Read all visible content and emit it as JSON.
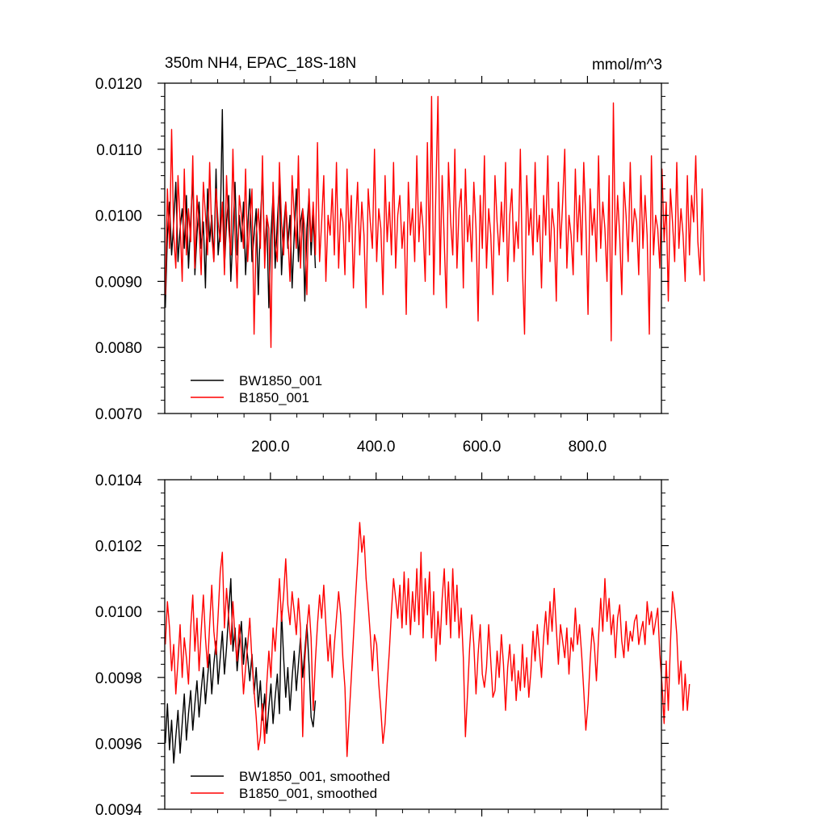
{
  "chart_data": [
    {
      "type": "line",
      "title": "350m NH4, EPAC_18S-18N",
      "units": "mmol/m^3",
      "xlim": [
        0,
        940
      ],
      "ylim": [
        0.007,
        0.012
      ],
      "xticks": [
        200,
        400,
        600,
        800
      ],
      "xtick_labels": [
        "200.0",
        "400.0",
        "600.0",
        "800.0"
      ],
      "yticks": [
        0.007,
        0.008,
        0.009,
        0.01,
        0.011,
        0.012
      ],
      "ytick_labels": [
        "0.0070",
        "0.0080",
        "0.0090",
        "0.0100",
        "0.0110",
        "0.0120"
      ],
      "legend_position": "bottom-left",
      "series": [
        {
          "name": "BW1850_001",
          "color": "#000000",
          "x_start": 1,
          "x_step": 4,
          "values": [
            0.0086,
            0.0097,
            0.0102,
            0.0094,
            0.0099,
            0.0105,
            0.0093,
            0.0098,
            0.0101,
            0.0095,
            0.0103,
            0.0092,
            0.0099,
            0.0106,
            0.0091,
            0.0097,
            0.0102,
            0.0095,
            0.0099,
            0.0089,
            0.0104,
            0.0096,
            0.01,
            0.0093,
            0.0107,
            0.0094,
            0.0098,
            0.0116,
            0.0092,
            0.0099,
            0.0103,
            0.009,
            0.0097,
            0.0105,
            0.0094,
            0.01,
            0.0096,
            0.0102,
            0.0091,
            0.0098,
            0.0104,
            0.0093,
            0.0097,
            0.0101,
            0.0088,
            0.0099,
            0.0106,
            0.0094,
            0.01,
            0.0086,
            0.0097,
            0.0103,
            0.0092,
            0.0099,
            0.0105,
            0.0091,
            0.0098,
            0.0102,
            0.0095,
            0.01,
            0.0089,
            0.0097,
            0.0104,
            0.0093,
            0.0099,
            0.0101,
            0.0087,
            0.0098,
            0.0103,
            0.0094,
            0.01,
            0.0092
          ]
        },
        {
          "name": "B1850_001",
          "color": "#ff0000",
          "x_start": 1,
          "x_step": 4,
          "values": [
            0.0088,
            0.0104,
            0.0095,
            0.0113,
            0.0097,
            0.0092,
            0.0106,
            0.0099,
            0.009,
            0.0107,
            0.0094,
            0.0101,
            0.0096,
            0.0109,
            0.0092,
            0.0103,
            0.0098,
            0.0091,
            0.0105,
            0.01,
            0.0094,
            0.0108,
            0.0097,
            0.0093,
            0.0104,
            0.0099,
            0.0096,
            0.0102,
            0.0091,
            0.0106,
            0.0098,
            0.0094,
            0.011,
            0.0097,
            0.0089,
            0.0103,
            0.01,
            0.0095,
            0.0107,
            0.0093,
            0.0099,
            0.0104,
            0.0082,
            0.0097,
            0.0101,
            0.0095,
            0.0109,
            0.0092,
            0.01,
            0.0098,
            0.008,
            0.0105,
            0.0096,
            0.0093,
            0.0108,
            0.0099,
            0.0094,
            0.0102,
            0.0097,
            0.009,
            0.0106,
            0.01,
            0.0095,
            0.0109,
            0.0092,
            0.0101,
            0.0098,
            0.0088,
            0.0104,
            0.0096,
            0.0102,
            0.0094,
            0.0111,
            0.0093,
            0.0099,
            0.0106,
            0.009,
            0.01,
            0.0097,
            0.0104,
            0.0094,
            0.0108,
            0.0092,
            0.0101,
            0.0099,
            0.0091,
            0.0107,
            0.0096,
            0.0103,
            0.0089,
            0.0098,
            0.0105,
            0.0094,
            0.0102,
            0.0097,
            0.0086,
            0.0104,
            0.0099,
            0.0095,
            0.011,
            0.0093,
            0.0101,
            0.0098,
            0.0088,
            0.0106,
            0.0096,
            0.0102,
            0.0094,
            0.0108,
            0.0092,
            0.01,
            0.0103,
            0.0095,
            0.0099,
            0.0085,
            0.0105,
            0.0097,
            0.0101,
            0.0093,
            0.0109,
            0.0096,
            0.0102,
            0.0098,
            0.009,
            0.0111,
            0.0094,
            0.0118,
            0.0088,
            0.0103,
            0.0118,
            0.0091,
            0.0106,
            0.0096,
            0.0086,
            0.0108,
            0.0099,
            0.0094,
            0.011,
            0.0092,
            0.0101,
            0.0104,
            0.0089,
            0.0107,
            0.0096,
            0.01,
            0.0093,
            0.0105,
            0.0098,
            0.0084,
            0.0103,
            0.0095,
            0.0109,
            0.0092,
            0.0101,
            0.0097,
            0.0088,
            0.0106,
            0.0099,
            0.0094,
            0.0102,
            0.0096,
            0.0108,
            0.009,
            0.01,
            0.0104,
            0.0093,
            0.0099,
            0.0095,
            0.011,
            0.0092,
            0.0082,
            0.0106,
            0.0097,
            0.0101,
            0.0094,
            0.0108,
            0.0096,
            0.01,
            0.0089,
            0.0103,
            0.0097,
            0.0109,
            0.0093,
            0.0101,
            0.0098,
            0.0087,
            0.0105,
            0.0095,
            0.0102,
            0.011,
            0.0092,
            0.01,
            0.0097,
            0.0091,
            0.0107,
            0.0096,
            0.0103,
            0.0094,
            0.0108,
            0.0099,
            0.0085,
            0.0104,
            0.0097,
            0.0101,
            0.0093,
            0.0109,
            0.0095,
            0.0102,
            0.0098,
            0.009,
            0.0106,
            0.0081,
            0.0117,
            0.0094,
            0.0103,
            0.0097,
            0.0088,
            0.0105,
            0.01,
            0.0093,
            0.0108,
            0.0096,
            0.0101,
            0.0099,
            0.0091,
            0.0106,
            0.0095,
            0.0103,
            0.0097,
            0.0082,
            0.0109,
            0.0094,
            0.01,
            0.0098,
            0.0092,
            0.0107,
            0.0096,
            0.0102,
            0.0087,
            0.0104,
            0.0099,
            0.0093,
            0.0108,
            0.0095,
            0.0101,
            0.0097,
            0.009,
            0.0106,
            0.0094,
            0.0103,
            0.0099,
            0.0109,
            0.0096,
            0.0091,
            0.0104,
            0.009
          ]
        }
      ]
    },
    {
      "type": "line",
      "xlim": [
        0,
        940
      ],
      "ylim": [
        0.0094,
        0.0104
      ],
      "yticks": [
        0.0094,
        0.0096,
        0.0098,
        0.01,
        0.0102,
        0.0104
      ],
      "ytick_labels": [
        "0.0094",
        "0.0096",
        "0.0098",
        "0.0100",
        "0.0102",
        "0.0104"
      ],
      "legend_position": "bottom-left",
      "series": [
        {
          "name": "BW1850_001, smoothed",
          "color": "#000000",
          "x_start": 1,
          "x_step": 4,
          "values": [
            0.0096,
            0.00972,
            0.00958,
            0.00967,
            0.00954,
            0.00962,
            0.0097,
            0.00957,
            0.00966,
            0.00975,
            0.00961,
            0.00969,
            0.00976,
            0.00964,
            0.00972,
            0.00979,
            0.00968,
            0.00976,
            0.00983,
            0.00972,
            0.0098,
            0.00987,
            0.00975,
            0.00984,
            0.00991,
            0.00978,
            0.00986,
            0.00994,
            0.00981,
            0.00989,
            0.01,
            0.0101,
            0.00988,
            0.00995,
            0.00982,
            0.0099,
            0.00997,
            0.00984,
            0.00992,
            0.00986,
            0.00979,
            0.00987,
            0.00975,
            0.00983,
            0.00971,
            0.00979,
            0.00967,
            0.00975,
            0.00963,
            0.00971,
            0.00978,
            0.00966,
            0.00974,
            0.00981,
            0.00969,
            0.01,
            0.00986,
            0.00974,
            0.00983,
            0.0097,
            0.0098,
            0.00988,
            0.00976,
            0.00984,
            0.00992,
            0.0098,
            0.00988,
            0.00996,
            0.00984,
            0.00968,
            0.00965,
            0.00973
          ]
        },
        {
          "name": "B1850_001, smoothed",
          "color": "#ff0000",
          "x_start": 1,
          "x_step": 4,
          "values": [
            0.0099,
            0.01003,
            0.00995,
            0.00982,
            0.0099,
            0.00975,
            0.00985,
            0.00996,
            0.0098,
            0.00992,
            0.00986,
            0.00978,
            0.00995,
            0.01005,
            0.00988,
            0.00998,
            0.00982,
            0.00994,
            0.01005,
            0.00992,
            0.00983,
            0.00996,
            0.01008,
            0.00994,
            0.00987,
            0.00999,
            0.01012,
            0.01018,
            0.00995,
            0.01007,
            0.00998,
            0.0099,
            0.01003,
            0.00992,
            0.00985,
            0.00996,
            0.00988,
            0.00975,
            0.00983,
            0.0099,
            0.00998,
            0.00985,
            0.00976,
            0.00968,
            0.00958,
            0.00962,
            0.00972,
            0.0096,
            0.00978,
            0.00988,
            0.0098,
            0.00995,
            0.00988,
            0.00999,
            0.0101,
            0.00997,
            0.01005,
            0.01016,
            0.01002,
            0.00996,
            0.01006,
            0.01,
            0.00993,
            0.01004,
            0.00995,
            0.00962,
            0.00985,
            0.00995,
            0.01002,
            0.00992,
            0.0097,
            0.00985,
            0.00996,
            0.01005,
            0.00998,
            0.01008,
            0.00996,
            0.00985,
            0.00993,
            0.0098,
            0.0099,
            0.00998,
            0.01006,
            0.00999,
            0.00986,
            0.00977,
            0.00956,
            0.00968,
            0.0098,
            0.00992,
            0.01004,
            0.01015,
            0.01027,
            0.01018,
            0.01023,
            0.0101,
            0.01002,
            0.00993,
            0.00982,
            0.00993,
            0.0099,
            0.00978,
            0.0097,
            0.0096,
            0.00966,
            0.00978,
            0.00988,
            0.01,
            0.0101,
            0.01004,
            0.00998,
            0.01008,
            0.00995,
            0.01012,
            0.00996,
            0.0101,
            0.00993,
            0.01006,
            0.00997,
            0.01013,
            0.00996,
            0.01018,
            0.00992,
            0.0101,
            0.00999,
            0.01012,
            0.00992,
            0.01006,
            0.00985,
            0.01,
            0.0099,
            0.01004,
            0.01013,
            0.00996,
            0.01009,
            0.00992,
            0.01013,
            0.00997,
            0.01008,
            0.00992,
            0.01001,
            0.00986,
            0.00962,
            0.00975,
            0.00989,
            0.00999,
            0.0099,
            0.00975,
            0.00987,
            0.00996,
            0.00981,
            0.00977,
            0.00983,
            0.00996,
            0.00985,
            0.00974,
            0.00976,
            0.00988,
            0.0098,
            0.00993,
            0.00984,
            0.0097,
            0.00983,
            0.0099,
            0.00979,
            0.00987,
            0.00973,
            0.00982,
            0.00976,
            0.0099,
            0.00977,
            0.00986,
            0.00974,
            0.00982,
            0.00994,
            0.00985,
            0.00996,
            0.00988,
            0.0098,
            0.00992,
            0.01,
            0.0099,
            0.01003,
            0.00994,
            0.01007,
            0.00995,
            0.00984,
            0.00996,
            0.00991,
            0.00986,
            0.00995,
            0.00981,
            0.00992,
            0.00988,
            0.01001,
            0.0099,
            0.00996,
            0.00987,
            0.00976,
            0.00964,
            0.00972,
            0.00985,
            0.00995,
            0.0099,
            0.00979,
            0.00992,
            0.01004,
            0.00994,
            0.0101,
            0.00997,
            0.01004,
            0.00993,
            0.00999,
            0.00986,
            0.00998,
            0.01002,
            0.00991,
            0.00986,
            0.00997,
            0.00988,
            0.00994,
            0.00991,
            0.00997,
            0.00999,
            0.0099,
            0.00994,
            0.00997,
            0.0099,
            0.01003,
            0.00996,
            0.01,
            0.00993,
            0.00997,
            0.01001,
            0.00987,
            0.00978,
            0.00966,
            0.00985,
            0.0097,
            0.0099,
            0.01006,
            0.01001,
            0.00993,
            0.00978,
            0.00985,
            0.0097,
            0.00981,
            0.0097,
            0.00978
          ]
        }
      ]
    }
  ]
}
